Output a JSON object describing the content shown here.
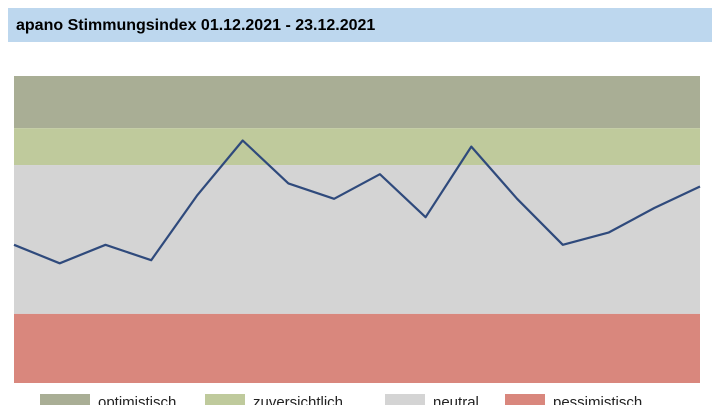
{
  "chart_data": {
    "type": "line",
    "title": "apano Stimmungsindex 01.12.2021 - 23.12.2021",
    "ylim": [
      0,
      100
    ],
    "bands": [
      {
        "name": "optimistisch",
        "color": "#a9ae95",
        "from": 83,
        "to": 100
      },
      {
        "name": "zuversichtlich",
        "color": "#bfca9c",
        "from": 71,
        "to": 83
      },
      {
        "name": "neutral",
        "color": "#d4d4d4",
        "from": 22.5,
        "to": 71
      },
      {
        "name": "pessimistisch",
        "color": "#d9877d",
        "from": 0,
        "to": 22.5
      }
    ],
    "series": [
      {
        "color": "#2f4a7c",
        "values": [
          45,
          39,
          45,
          40,
          61,
          79,
          65,
          60,
          68,
          54,
          77,
          60,
          45,
          49,
          57,
          64
        ]
      }
    ]
  }
}
